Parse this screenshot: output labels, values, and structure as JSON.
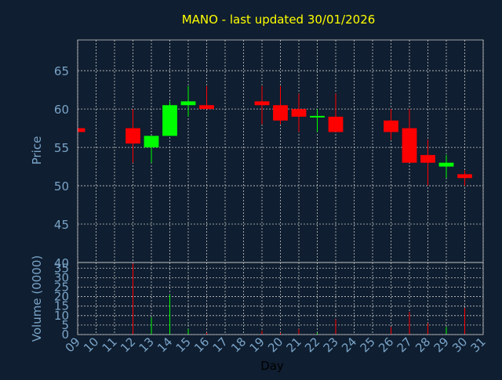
{
  "chart_data": {
    "type": "candlestick",
    "title": "MANO - last updated 30/01/2026",
    "xlabel": "Day",
    "x_ticks": [
      "09",
      "10",
      "11",
      "12",
      "13",
      "14",
      "15",
      "16",
      "17",
      "18",
      "19",
      "20",
      "21",
      "22",
      "23",
      "24",
      "25",
      "26",
      "27",
      "28",
      "29",
      "30",
      "31"
    ],
    "grid": true,
    "price_panel": {
      "ylabel": "Price",
      "ylim": [
        40,
        69
      ],
      "y_ticks": [
        "40",
        "45",
        "50",
        "55",
        "60",
        "65"
      ],
      "candles": [
        {
          "day": 9,
          "open": 57.5,
          "high": 57.5,
          "low": 57.0,
          "close": 57.0
        },
        {
          "day": 12,
          "open": 57.5,
          "high": 60.0,
          "low": 53.0,
          "close": 55.5
        },
        {
          "day": 13,
          "open": 55.0,
          "high": 56.5,
          "low": 53.0,
          "close": 56.5
        },
        {
          "day": 14,
          "open": 56.5,
          "high": 61.0,
          "low": 56.5,
          "close": 60.5
        },
        {
          "day": 15,
          "open": 60.5,
          "high": 63.0,
          "low": 59.0,
          "close": 61.0
        },
        {
          "day": 16,
          "open": 60.5,
          "high": 63.0,
          "low": 60.0,
          "close": 60.0
        },
        {
          "day": 19,
          "open": 61.0,
          "high": 63.0,
          "low": 58.0,
          "close": 60.5
        },
        {
          "day": 20,
          "open": 60.5,
          "high": 63.0,
          "low": 58.0,
          "close": 58.5
        },
        {
          "day": 21,
          "open": 60.0,
          "high": 62.0,
          "low": 57.0,
          "close": 59.0
        },
        {
          "day": 22,
          "open": 59.0,
          "high": 60.0,
          "low": 57.0,
          "close": 59.0
        },
        {
          "day": 23,
          "open": 59.0,
          "high": 62.0,
          "low": 57.0,
          "close": 57.0
        },
        {
          "day": 26,
          "open": 58.5,
          "high": 60.0,
          "low": 56.0,
          "close": 57.0
        },
        {
          "day": 27,
          "open": 57.5,
          "high": 60.0,
          "low": 53.0,
          "close": 53.0
        },
        {
          "day": 28,
          "open": 54.0,
          "high": 56.0,
          "low": 50.0,
          "close": 53.0
        },
        {
          "day": 29,
          "open": 52.5,
          "high": 54.0,
          "low": 51.0,
          "close": 53.0
        },
        {
          "day": 30,
          "open": 51.5,
          "high": 52.0,
          "low": 50.0,
          "close": 51.0
        }
      ]
    },
    "volume_panel": {
      "ylabel": "Volume (0000)",
      "ylim": [
        0,
        38
      ],
      "y_ticks": [
        "0",
        "5",
        "10",
        "15",
        "20",
        "25",
        "30",
        "35"
      ],
      "bars": [
        {
          "day": 12,
          "value": 37.5,
          "direction": "down"
        },
        {
          "day": 13,
          "value": 9.0,
          "direction": "up"
        },
        {
          "day": 14,
          "value": 21.0,
          "direction": "up"
        },
        {
          "day": 15,
          "value": 3.0,
          "direction": "up"
        },
        {
          "day": 16,
          "value": 1.0,
          "direction": "down"
        },
        {
          "day": 19,
          "value": 2.0,
          "direction": "down"
        },
        {
          "day": 20,
          "value": 1.0,
          "direction": "down"
        },
        {
          "day": 21,
          "value": 3.0,
          "direction": "down"
        },
        {
          "day": 22,
          "value": 1.0,
          "direction": "up"
        },
        {
          "day": 23,
          "value": 8.0,
          "direction": "down"
        },
        {
          "day": 26,
          "value": 4.0,
          "direction": "down"
        },
        {
          "day": 27,
          "value": 12.0,
          "direction": "down"
        },
        {
          "day": 28,
          "value": 6.0,
          "direction": "down"
        },
        {
          "day": 29,
          "value": 4.0,
          "direction": "up"
        },
        {
          "day": 30,
          "value": 14.0,
          "direction": "down"
        }
      ]
    }
  },
  "colors": {
    "background": "#0f1e30",
    "title": "#ffff00",
    "axis_text": "#7aa4c8",
    "xlabel_text": "#000000",
    "grid": "#c8c8c8",
    "up": "#00ff00",
    "down": "#ff0000"
  }
}
